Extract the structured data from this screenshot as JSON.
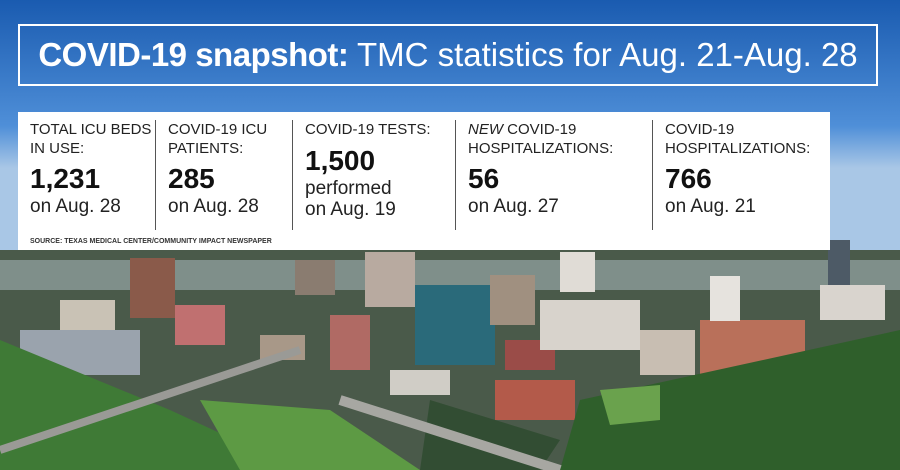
{
  "header": {
    "title_bold": "COVID-19 snapshot:",
    "title_rest": "TMC statistics for Aug. 21-Aug. 28"
  },
  "stats": [
    {
      "label": "TOTAL ICU BEDS IN USE:",
      "value": "1,231",
      "note": "on Aug. 28"
    },
    {
      "label": "COVID-19 ICU PATIENTS:",
      "value": "285",
      "note": "on Aug. 28"
    },
    {
      "label": "COVID-19 TESTS:",
      "value": "1,500",
      "note": "performed on Aug. 19"
    },
    {
      "label_em": "NEW",
      "label": "COVID-19 HOSPITALIZATIONS:",
      "value": "56",
      "note": "on Aug. 27"
    },
    {
      "label": "COVID-19 HOSPITALIZATIONS:",
      "value": "766",
      "note": "on Aug. 21"
    }
  ],
  "source": "SOURCE: TEXAS MEDICAL CENTER/COMMUNITY IMPACT NEWSPAPER"
}
